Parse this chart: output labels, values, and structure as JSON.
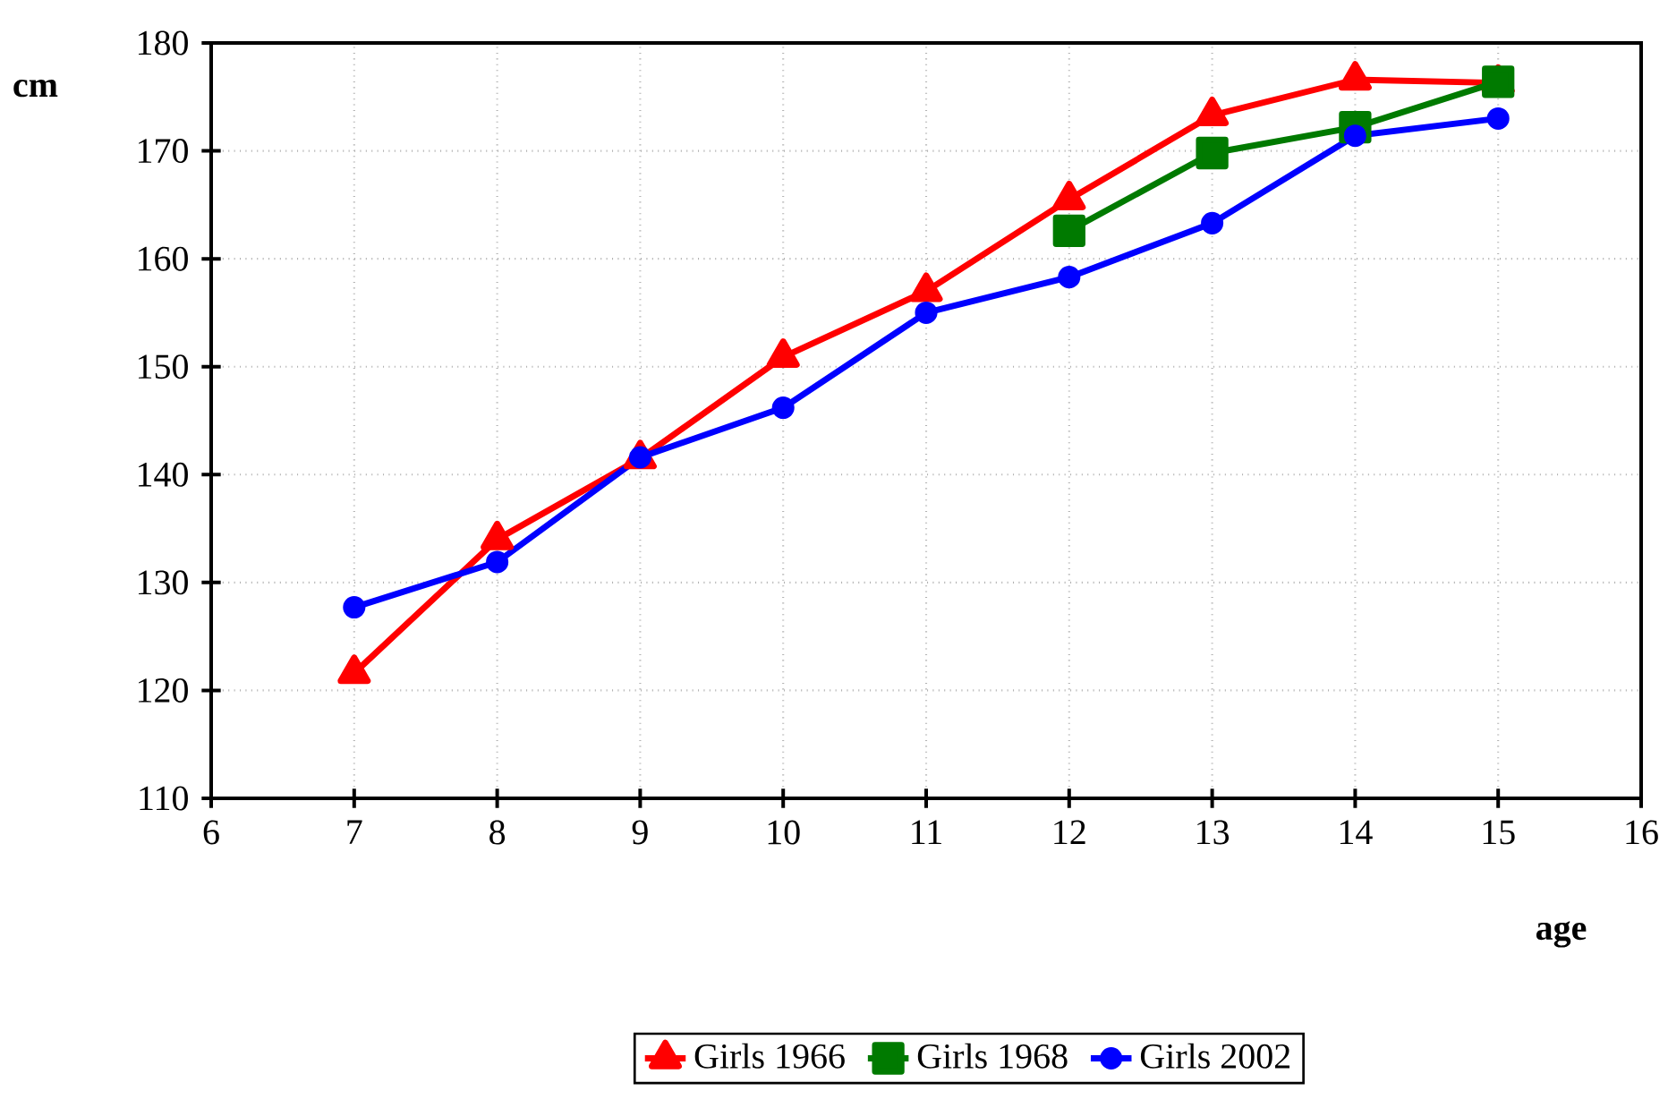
{
  "chart_data": {
    "type": "line",
    "xlabel": "age",
    "ylabel": "cm",
    "x": [
      7,
      8,
      9,
      10,
      11,
      12,
      13,
      14,
      15
    ],
    "xlim": [
      6,
      16
    ],
    "xticks": [
      6,
      7,
      8,
      9,
      10,
      11,
      12,
      13,
      14,
      15,
      16
    ],
    "ylim": [
      110,
      180
    ],
    "yticks": [
      110,
      120,
      130,
      140,
      150,
      160,
      170,
      180
    ],
    "grid": true,
    "legend": "bottom",
    "series": [
      {
        "name": "Girls 1966",
        "color": "#ff0000",
        "marker": "triangle",
        "values": [
          121.6,
          134.0,
          141.5,
          150.9,
          157.0,
          165.5,
          173.3,
          176.6,
          176.3
        ]
      },
      {
        "name": "Girls 1968",
        "color": "#007a00",
        "marker": "square",
        "values": [
          null,
          null,
          null,
          null,
          null,
          162.6,
          169.8,
          172.2,
          176.4
        ]
      },
      {
        "name": "Girls 2002",
        "color": "#0000ff",
        "marker": "circle",
        "values": [
          127.7,
          131.9,
          141.6,
          146.2,
          155.0,
          158.3,
          163.3,
          171.4,
          173.0
        ]
      }
    ]
  }
}
